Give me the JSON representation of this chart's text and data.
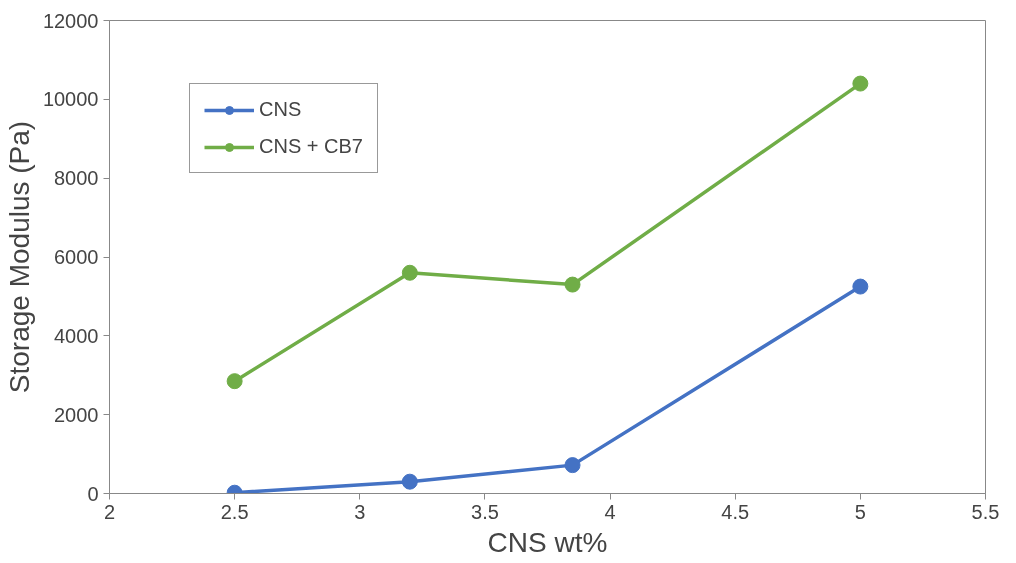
{
  "chart_data": {
    "type": "line",
    "xlabel": "CNS wt%",
    "ylabel": "Storage Modulus (Pa)",
    "x": [
      2.5,
      3.2,
      3.85,
      5
    ],
    "series": [
      {
        "name": "CNS",
        "color": "#4472c4",
        "values": [
          20,
          300,
          720,
          5250
        ]
      },
      {
        "name": "CNS + CB7",
        "color": "#70ad47",
        "values": [
          2850,
          5600,
          5300,
          10400
        ]
      }
    ],
    "xlim": [
      2,
      5.5
    ],
    "xticks": [
      2,
      2.5,
      3,
      3.5,
      4,
      4.5,
      5,
      5.5
    ],
    "ylim": [
      0,
      12000
    ],
    "yticks": [
      0,
      2000,
      4000,
      6000,
      8000,
      10000,
      12000
    ],
    "grid": false,
    "legend": "top left",
    "marker": "circle",
    "line_style": "solid"
  }
}
